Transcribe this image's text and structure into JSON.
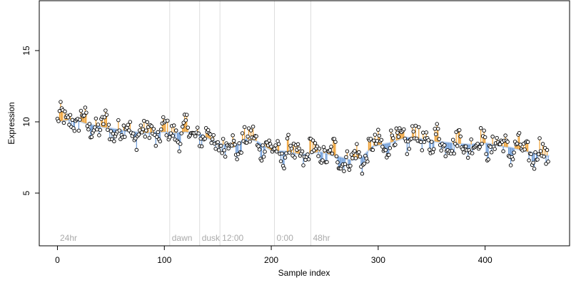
{
  "chart_data": {
    "type": "scatter",
    "xlabel": "Sample index",
    "ylabel": "Expression",
    "xlim": [
      -17,
      479
    ],
    "ylim": [
      1.3,
      18.5
    ],
    "x_ticks": [
      "0",
      "100",
      "200",
      "300",
      "400"
    ],
    "y_ticks": [
      "5",
      "10",
      "15"
    ],
    "grid": false,
    "phase_markers": [
      {
        "x": 105,
        "label": "dawn"
      },
      {
        "x": 133,
        "label": "dusk"
      },
      {
        "x": 152,
        "label": "12:00"
      },
      {
        "x": 203,
        "label": "0:00"
      },
      {
        "x": 237,
        "label": "48hr"
      }
    ],
    "corner_label": "24hr",
    "colors": {
      "above_trend": "#f0a030",
      "below_trend": "#6a9ad8",
      "trend": "#a9c3e6",
      "points_fill": "#ffffff",
      "points_stroke": "#000000",
      "vline": "#dddddd"
    },
    "trend_anchors": [
      [
        0,
        10.0
      ],
      [
        15,
        10.2
      ],
      [
        30,
        9.8
      ],
      [
        45,
        9.6
      ],
      [
        60,
        9.4
      ],
      [
        80,
        9.2
      ],
      [
        100,
        9.3
      ],
      [
        110,
        9.2
      ],
      [
        120,
        9.3
      ],
      [
        135,
        9.1
      ],
      [
        150,
        8.5
      ],
      [
        165,
        8.2
      ],
      [
        175,
        8.8
      ],
      [
        185,
        8.7
      ],
      [
        200,
        8.0
      ],
      [
        215,
        7.9
      ],
      [
        230,
        7.7
      ],
      [
        245,
        7.9
      ],
      [
        260,
        7.6
      ],
      [
        275,
        7.3
      ],
      [
        285,
        7.5
      ],
      [
        295,
        8.3
      ],
      [
        310,
        8.5
      ],
      [
        325,
        8.9
      ],
      [
        340,
        8.8
      ],
      [
        355,
        8.6
      ],
      [
        370,
        8.5
      ],
      [
        385,
        8.4
      ],
      [
        400,
        8.5
      ],
      [
        415,
        8.3
      ],
      [
        430,
        8.1
      ],
      [
        445,
        7.8
      ],
      [
        460,
        7.6
      ]
    ],
    "n_points": 460
  }
}
